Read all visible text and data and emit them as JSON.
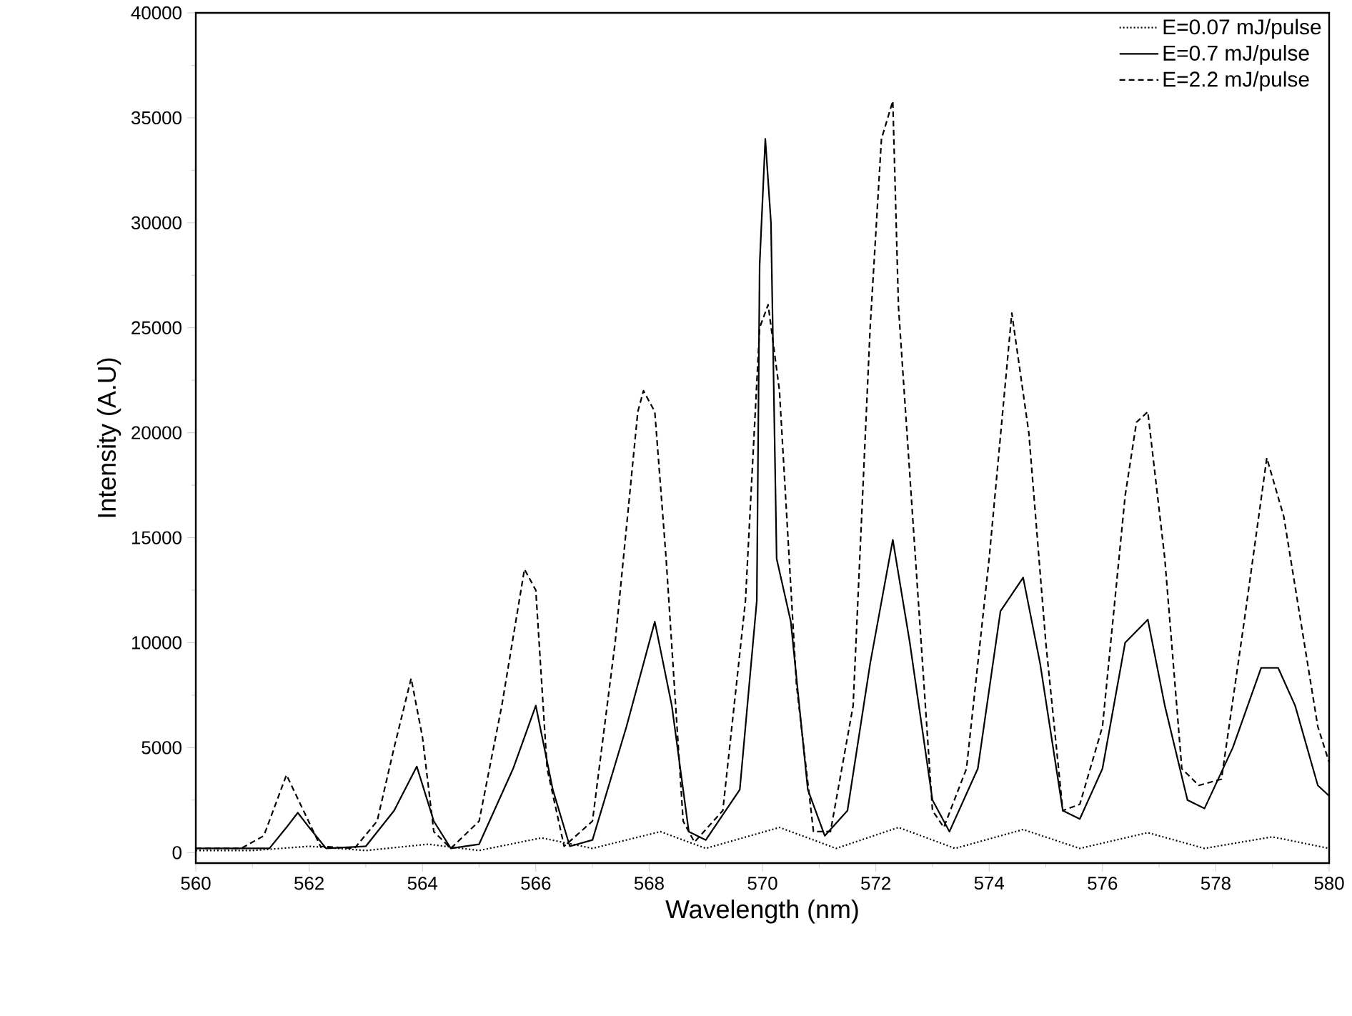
{
  "chart_data": {
    "type": "line",
    "xlabel": "Wavelength (nm)",
    "ylabel": "Intensity (A.U)",
    "xlim": [
      560,
      580
    ],
    "xticks": [
      560,
      562,
      564,
      566,
      568,
      570,
      572,
      574,
      576,
      578,
      580
    ],
    "ylim": [
      -500,
      40000
    ],
    "yticks": [
      0,
      5000,
      10000,
      15000,
      20000,
      25000,
      30000,
      35000,
      40000
    ],
    "grid": false,
    "legend": "top right",
    "marker": "none",
    "series": [
      {
        "name": "E=0.07 mJ/pulse",
        "color": "#000000",
        "line_style": "dotted",
        "x": [
          560,
          561,
          562,
          563,
          564.1,
          565,
          566.1,
          567,
          568.2,
          569,
          570.3,
          571.3,
          572.4,
          573.4,
          574.6,
          575.6,
          576.8,
          577.8,
          579,
          580
        ],
        "values": [
          100,
          100,
          300,
          100,
          400,
          100,
          700,
          200,
          1000,
          200,
          1200,
          200,
          1200,
          200,
          1100,
          200,
          950,
          200,
          750,
          200
        ]
      },
      {
        "name": "E=0.7 mJ/pulse",
        "color": "#000000",
        "line_style": "solid",
        "x": [
          560,
          561.3,
          561.6,
          561.8,
          562.0,
          562.3,
          563.0,
          563.5,
          563.9,
          564.2,
          564.5,
          565.0,
          565.6,
          566.0,
          566.3,
          566.6,
          567.0,
          567.6,
          568.1,
          568.4,
          568.7,
          569.0,
          569.6,
          569.9,
          569.95,
          570.05,
          570.15,
          570.25,
          570.5,
          570.8,
          571.1,
          571.5,
          571.9,
          572.3,
          572.6,
          573.0,
          573.3,
          573.8,
          574.2,
          574.6,
          574.9,
          575.3,
          575.6,
          576.0,
          576.4,
          576.8,
          577.1,
          577.5,
          577.8,
          578.3,
          578.8,
          579.1,
          579.4,
          579.8,
          580
        ],
        "values": [
          200,
          200,
          1200,
          1900,
          1200,
          200,
          300,
          2000,
          4100,
          1500,
          200,
          400,
          4000,
          7000,
          3000,
          300,
          600,
          6000,
          11000,
          7000,
          1000,
          600,
          3000,
          12000,
          28000,
          34000,
          30000,
          14000,
          11000,
          3000,
          800,
          2000,
          9000,
          14900,
          10000,
          2500,
          1000,
          4000,
          11500,
          13100,
          9000,
          2000,
          1600,
          4000,
          10000,
          11100,
          7000,
          2500,
          2100,
          5000,
          8800,
          8800,
          7000,
          3200,
          2700
        ]
      },
      {
        "name": "E=2.2 mJ/pulse",
        "color": "#000000",
        "line_style": "dashed",
        "x": [
          560,
          560.8,
          561.2,
          561.6,
          561.9,
          562.2,
          562.8,
          563.2,
          563.5,
          563.8,
          564.0,
          564.2,
          564.5,
          565.0,
          565.4,
          565.8,
          566.0,
          566.2,
          566.5,
          567.0,
          567.4,
          567.8,
          567.9,
          568.1,
          568.3,
          568.6,
          568.8,
          569.3,
          569.7,
          569.95,
          570.1,
          570.3,
          570.6,
          570.9,
          571.2,
          571.6,
          571.9,
          572.1,
          572.3,
          572.4,
          572.7,
          573.0,
          573.2,
          573.6,
          574.0,
          574.4,
          574.7,
          575.0,
          575.3,
          575.6,
          576.0,
          576.4,
          576.6,
          576.8,
          577.1,
          577.4,
          577.7,
          578.1,
          578.5,
          578.9,
          579.2,
          579.5,
          579.8,
          580
        ],
        "values": [
          200,
          200,
          800,
          3700,
          2000,
          300,
          200,
          1500,
          5000,
          8300,
          5500,
          1000,
          200,
          1500,
          7000,
          13500,
          12500,
          4000,
          300,
          1500,
          10000,
          21000,
          22000,
          21000,
          14000,
          1500,
          500,
          2000,
          12000,
          25000,
          26100,
          22000,
          8000,
          1000,
          1000,
          7000,
          25000,
          34000,
          35800,
          26000,
          14000,
          2000,
          1200,
          4000,
          14000,
          25700,
          20000,
          10000,
          2000,
          2300,
          6000,
          17000,
          20500,
          21000,
          14000,
          4000,
          3200,
          3500,
          11000,
          18800,
          16000,
          11000,
          6000,
          4300
        ]
      }
    ]
  }
}
